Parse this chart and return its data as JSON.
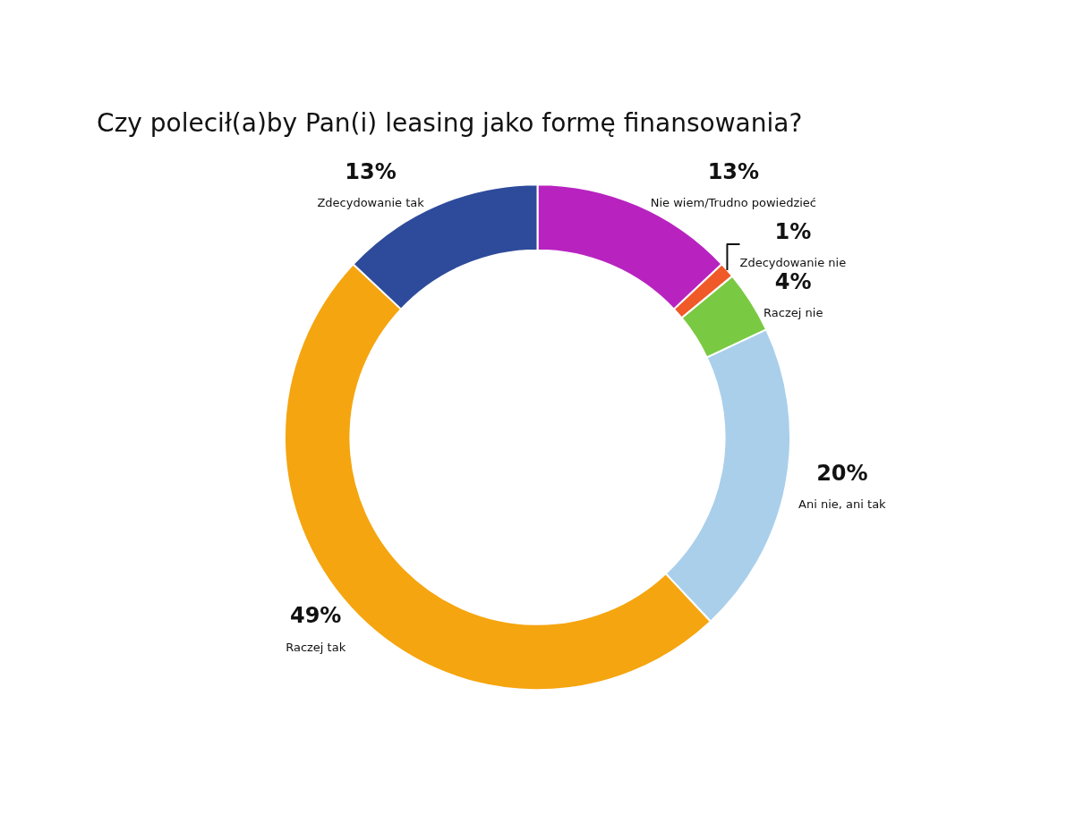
{
  "chart_data": {
    "type": "donut",
    "title": "Czy polecił(a)by Pan(i) leasing jako formę finansowania?",
    "categories": [
      "Nie wiem/Trudno powiedzieć",
      "Zdecydowanie nie",
      "Raczej nie",
      "Ani nie, ani tak",
      "Raczej tak",
      "Zdecydowanie tak"
    ],
    "values": [
      13,
      1,
      4,
      20,
      49,
      13
    ],
    "value_labels": [
      "13%",
      "1%",
      "4%",
      "20%",
      "49%",
      "13%"
    ],
    "colors": [
      "#b823c0",
      "#f05a28",
      "#7ac943",
      "#a9cfeb",
      "#f5a50f",
      "#2e4b9b"
    ],
    "legend": false
  }
}
